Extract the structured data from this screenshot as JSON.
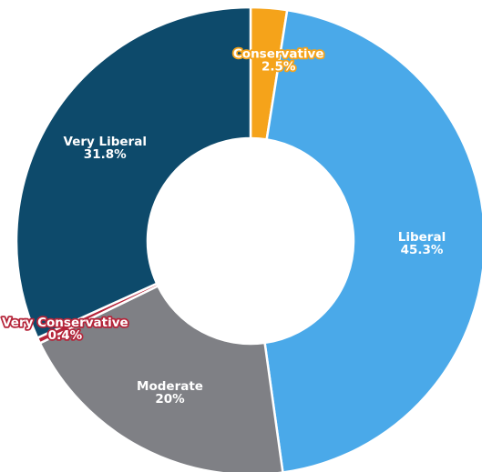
{
  "chart_data": {
    "type": "pie",
    "variant": "donut",
    "slices": [
      {
        "label": "Conservative",
        "value_label": "2.5%",
        "value": 2.5,
        "color": "#f5a31a",
        "text_color": "#ffffff",
        "outline_color": "#f5a31a"
      },
      {
        "label": "Liberal",
        "value_label": "45.3%",
        "value": 45.3,
        "color": "#4aa9e9",
        "text_color": "#ffffff",
        "outline_color": ""
      },
      {
        "label": "Moderate",
        "value_label": "20%",
        "value": 20,
        "color": "#7f8085",
        "text_color": "#ffffff",
        "outline_color": ""
      },
      {
        "label": "Very Conservative",
        "value_label": "0.4%",
        "value": 0.4,
        "color": "#b5253a",
        "text_color": "#ffffff",
        "outline_color": "#b5253a"
      },
      {
        "label": "Very Liberal",
        "value_label": "31.8%",
        "value": 31.8,
        "color": "#0d4a6b",
        "text_color": "#ffffff",
        "outline_color": ""
      }
    ],
    "start_angle_deg": 0,
    "direction": "clockwise",
    "legend": "none"
  }
}
